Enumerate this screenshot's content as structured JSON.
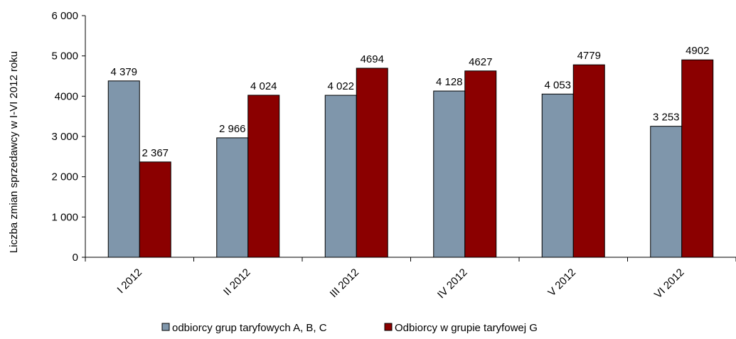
{
  "chart_data": {
    "type": "bar",
    "ylabel": "Liczba zmian sprzedawcy w I-VI 2012 roku",
    "xlabel": "",
    "ylim": [
      0,
      6000
    ],
    "y_ticks": [
      0,
      1000,
      2000,
      3000,
      4000,
      5000,
      6000
    ],
    "y_tick_labels": [
      "0",
      "1 000",
      "2 000",
      "3 000",
      "4000",
      "5 000",
      "6 000"
    ],
    "categories": [
      "I 2012",
      "II 2012",
      "III 2012",
      "IV 2012",
      "V 2012",
      "VI 2012"
    ],
    "series": [
      {
        "name": "odbiorcy grup taryfowych A, B, C",
        "color": "#7f96ab",
        "values": [
          4379,
          2966,
          4022,
          4128,
          4053,
          3253
        ],
        "labels": [
          "4 379",
          "2 966",
          "4 022",
          "4 128",
          "4 053",
          "3 253"
        ]
      },
      {
        "name": "Odbiorcy w grupie taryfowej G",
        "color": "#8b0000",
        "values": [
          2367,
          4024,
          4694,
          4627,
          4779,
          4902
        ],
        "labels": [
          "2 367",
          "4 024",
          "4694",
          "4627",
          "4779",
          "4902"
        ]
      }
    ],
    "legend_position": "bottom",
    "grid": false
  }
}
